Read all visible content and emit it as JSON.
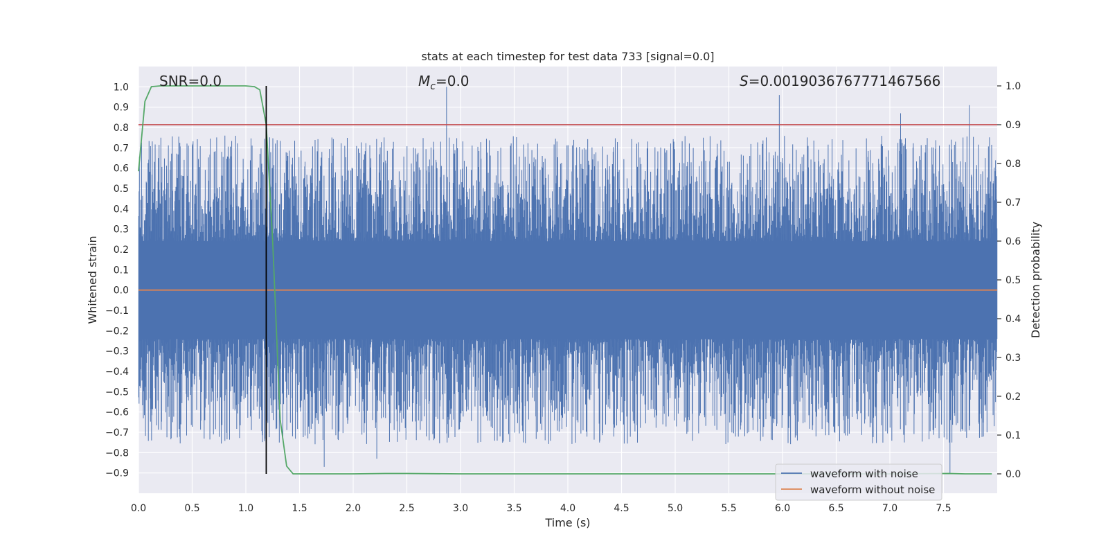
{
  "chart_data": {
    "type": "line",
    "title": "stats at each timestep for test data 733 [signal=0.0]",
    "xlabel": "Time (s)",
    "ylabel": "Whitened strain",
    "y2label": "Detection probability",
    "xlim": [
      0.0,
      8.0
    ],
    "ylim": [
      -1.0,
      1.1
    ],
    "y2lim": [
      -0.05,
      1.05
    ],
    "x_ticks": [
      "0.0",
      "0.5",
      "1.0",
      "1.5",
      "2.0",
      "2.5",
      "3.0",
      "3.5",
      "4.0",
      "4.5",
      "5.0",
      "5.5",
      "6.0",
      "6.5",
      "7.0",
      "7.5"
    ],
    "y_ticks": [
      "1.0",
      "0.9",
      "0.8",
      "0.7",
      "0.6",
      "0.5",
      "0.4",
      "0.3",
      "0.2",
      "0.1",
      "0.0",
      "−0.1",
      "−0.2",
      "−0.3",
      "−0.4",
      "−0.5",
      "−0.6",
      "−0.7",
      "−0.8",
      "−0.9"
    ],
    "y2_ticks": [
      "1.0",
      "0.9",
      "0.8",
      "0.7",
      "0.6",
      "0.5",
      "0.4",
      "0.3",
      "0.2",
      "0.1",
      "0.0"
    ],
    "grid": true,
    "legend_position": "lower-right",
    "annotations": {
      "snr": "SNR=0.0",
      "mc_symbol": "M",
      "mc_subscript": "c",
      "mc_value": "=0.0",
      "s_symbol": "S",
      "s_value": "=0.0019036767771467566"
    },
    "series": [
      {
        "name": "waveform with noise",
        "color": "#4c72b0",
        "axis": "left",
        "description_of_values": "dense noise, roughly within -0.9 to 1.0"
      },
      {
        "name": "waveform without noise",
        "color": "#dd8452",
        "axis": "left",
        "values_constant": 0.0
      },
      {
        "axis": "right",
        "color": "#55a868",
        "x": [
          0.0,
          0.06,
          0.12,
          0.2,
          0.4,
          0.8,
          1.0,
          1.08,
          1.13,
          1.19,
          1.25,
          1.32,
          1.38,
          1.44,
          1.5,
          2.0,
          2.3,
          2.5,
          3.0,
          4.0,
          5.0,
          6.0,
          7.0,
          7.55,
          7.7,
          7.95
        ],
        "values": [
          0.78,
          0.96,
          0.998,
          1.0,
          1.0,
          1.0,
          1.0,
          0.998,
          0.99,
          0.9,
          0.6,
          0.14,
          0.02,
          0.0,
          0.0,
          0.0,
          0.001,
          0.001,
          0.0,
          0.0,
          0.0,
          0.0,
          0.0,
          0.001,
          0.0,
          0.0
        ]
      }
    ],
    "threshold_line": {
      "axis": "right",
      "value": 0.9,
      "color": "#c44e52"
    },
    "marker_line": {
      "x": 1.19,
      "color": "#000000"
    },
    "colors": {
      "plot_background": "#eaeaf2",
      "grid": "#ffffff"
    }
  }
}
